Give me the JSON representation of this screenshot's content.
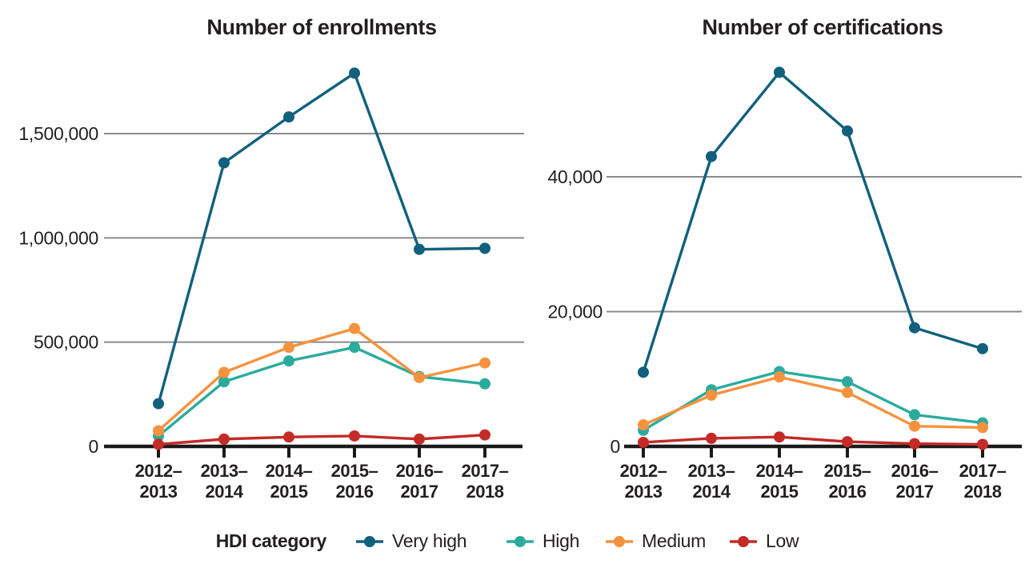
{
  "page": {
    "background": "#ffffff",
    "text_color": "#231f20",
    "grid_color": "#8a8a8a",
    "axis_color": "#1a1a1a"
  },
  "legend": {
    "title": "HDI category"
  },
  "chart_data": [
    {
      "type": "line",
      "title": "Number of enrollments",
      "categories": [
        "2012–2013",
        "2013–2014",
        "2014–2015",
        "2015–2016",
        "2016–2017",
        "2017–2018"
      ],
      "series": [
        {
          "name": "Very high",
          "color": "#11607c",
          "values": [
            205000,
            1360000,
            1580000,
            1790000,
            945000,
            950000
          ]
        },
        {
          "name": "High",
          "color": "#2bab9e",
          "values": [
            50000,
            310000,
            410000,
            475000,
            335000,
            300000
          ]
        },
        {
          "name": "Medium",
          "color": "#f6923e",
          "values": [
            75000,
            355000,
            475000,
            565000,
            330000,
            400000
          ]
        },
        {
          "name": "Low",
          "color": "#c52a27",
          "values": [
            10000,
            35000,
            45000,
            50000,
            35000,
            55000
          ]
        }
      ],
      "y_ticks": [
        0,
        500000,
        1000000,
        1500000
      ],
      "ylim": [
        0,
        1870000
      ],
      "xlabel": "",
      "ylabel": "",
      "grid": true,
      "legend_position": "bottom"
    },
    {
      "type": "line",
      "title": "Number of certifications",
      "categories": [
        "2012–2013",
        "2013–2014",
        "2014–2015",
        "2015–2016",
        "2016–2017",
        "2017–2018"
      ],
      "series": [
        {
          "name": "Very high",
          "color": "#11607c",
          "values": [
            11000,
            43000,
            55500,
            46800,
            17600,
            14500
          ]
        },
        {
          "name": "High",
          "color": "#2bab9e",
          "values": [
            2400,
            8400,
            11100,
            9600,
            4700,
            3500
          ]
        },
        {
          "name": "Medium",
          "color": "#f6923e",
          "values": [
            3200,
            7600,
            10300,
            8000,
            3000,
            2800
          ]
        },
        {
          "name": "Low",
          "color": "#c52a27",
          "values": [
            600,
            1200,
            1400,
            700,
            400,
            300
          ]
        }
      ],
      "y_ticks": [
        0,
        20000,
        40000
      ],
      "ylim": [
        0,
        56500
      ],
      "xlabel": "",
      "ylabel": "",
      "grid": true,
      "legend_position": "bottom"
    }
  ]
}
